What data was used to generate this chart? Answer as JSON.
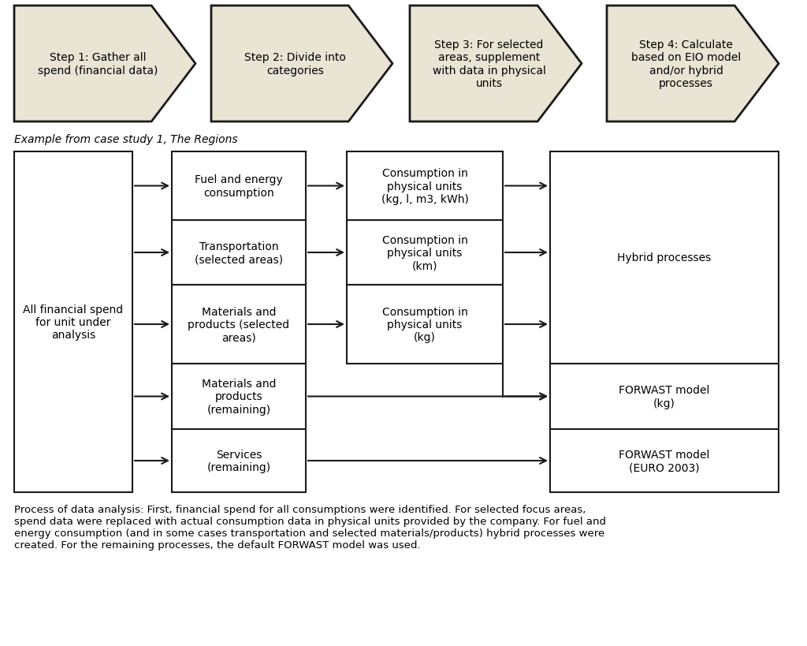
{
  "bg_color": "#ffffff",
  "pentagon_fill": "#eae4d5",
  "pentagon_edge": "#1a1a1a",
  "box_fill": "#ffffff",
  "box_edge": "#1a1a1a",
  "steps": [
    "Step 1: Gather all\nspend (financial data)",
    "Step 2: Divide into\ncategories",
    "Step 3: For selected\nareas, supplement\nwith data in physical\nunits",
    "Step 4: Calculate\nbased on EIO model\nand/or hybrid\nprocesses"
  ],
  "italic_label": "Example from case study 1, The Regions",
  "left_box_text": "All financial spend\nfor unit under\nanalysis",
  "col2_boxes": [
    "Fuel and energy\nconsumption",
    "Transportation\n(selected areas)",
    "Materials and\nproducts (selected\nareas)",
    "Materials and\nproducts\n(remaining)",
    "Services\n(remaining)"
  ],
  "col3_boxes": [
    "Consumption in\nphysical units\n(kg, l, m3, kWh)",
    "Consumption in\nphysical units\n(km)",
    "Consumption in\nphysical units\n(kg)"
  ],
  "col4_boxes": [
    "Hybrid processes",
    "FORWAST model\n(kg)",
    "FORWAST model\n(EURO 2003)"
  ],
  "caption": "Process of data analysis: First, financial spend for all consumptions were identified. For selected focus areas,\nspend data were replaced with actual consumption data in physical units provided by the company. For fuel and\nenergy consumption (and in some cases transportation and selected materials/products) hybrid processes were\ncreated. For the remaining processes, the default FORWAST model was used."
}
